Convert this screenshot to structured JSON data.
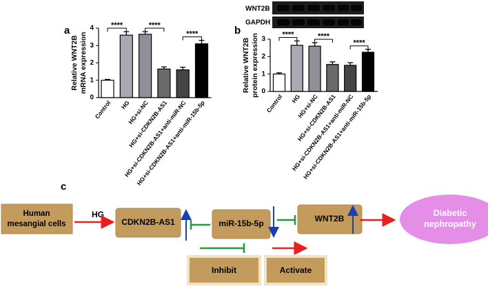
{
  "chart_data": [
    {
      "type": "bar",
      "panel": "a",
      "ylabel": [
        "Relative WNT2B",
        "mRNA expression"
      ],
      "categories": [
        "Control",
        "HG",
        "HG+si-NC",
        "HG+si-CDKN2B-AS1",
        "HG+si-CDKN2B-AS1+anti-miR-NC",
        "HG+si-CDKN2B-AS1+anti-miR-15b-5p"
      ],
      "values": [
        1.0,
        3.6,
        3.65,
        1.65,
        1.6,
        3.1
      ],
      "errors": [
        0.05,
        0.2,
        0.15,
        0.12,
        0.15,
        0.2
      ],
      "colors": [
        "#ffffff",
        "#a9a9b3",
        "#8f8f96",
        "#6a6a6a",
        "#454545",
        "#000000"
      ],
      "ylim": [
        0,
        4
      ],
      "yticks": [
        0,
        1,
        2,
        3,
        4
      ],
      "annotations": [
        "****",
        "****",
        "****"
      ]
    },
    {
      "type": "bar",
      "panel": "b",
      "ylabel": [
        "Relative WNT2B",
        "protein expression"
      ],
      "categories": [
        "Control",
        "HG",
        "HG+si-NC",
        "HG+si-CDKN2B-AS1",
        "HG+si-CDKN2B-AS1+anti-miR-NC",
        "HG+si-CDKN2B-AS1+anti-miR-15b-5p"
      ],
      "values": [
        1.0,
        2.65,
        2.6,
        1.55,
        1.5,
        2.25
      ],
      "errors": [
        0.07,
        0.25,
        0.2,
        0.15,
        0.15,
        0.17
      ],
      "colors": [
        "#ffffff",
        "#a9a9b3",
        "#8f8f96",
        "#6a6a6a",
        "#454545",
        "#000000"
      ],
      "ylim": [
        0,
        3
      ],
      "yticks": [
        0,
        1,
        2,
        3
      ],
      "annotations": [
        "****",
        "****",
        "****"
      ]
    }
  ],
  "blot": {
    "labels": [
      "WNT2B",
      "GAPDH"
    ]
  },
  "diagram": {
    "panel": "c",
    "source": "Human mesangial cells",
    "stimulus": "HG",
    "nodes": [
      "CDKN2B-AS1",
      "miR-15b-5p",
      "WNT2B"
    ],
    "outcome": "Diabetic nephropathy",
    "legend": [
      "Inhibit",
      "Activate"
    ]
  }
}
